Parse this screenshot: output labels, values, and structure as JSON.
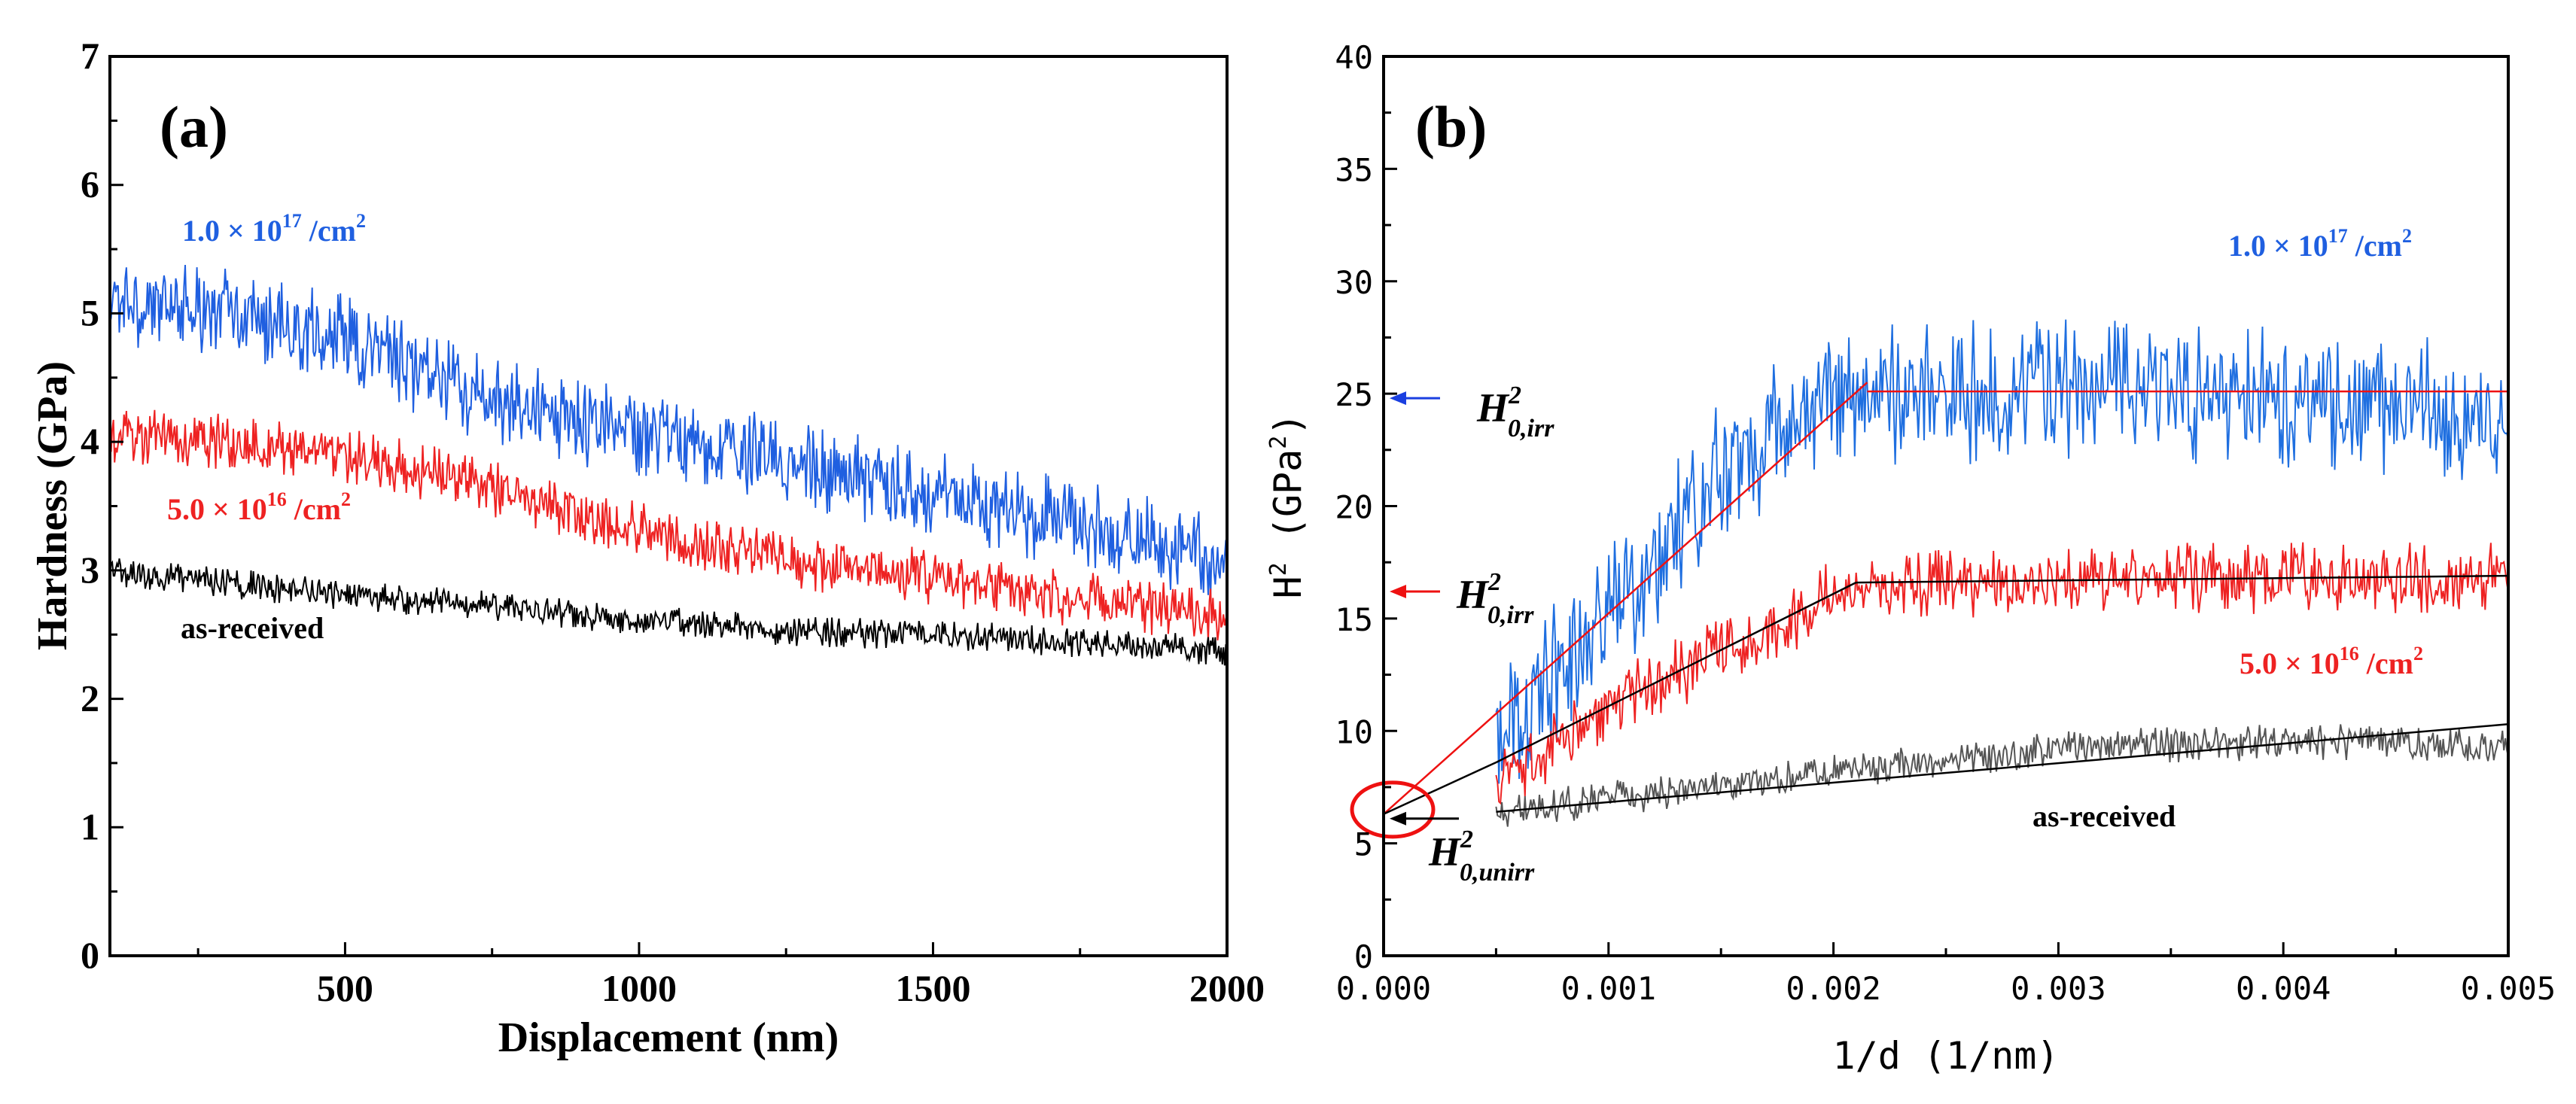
{
  "chart_data": [
    {
      "panel": "a",
      "type": "line",
      "panel_label": "(a)",
      "xlabel": "Displacement (nm)",
      "ylabel": "Hardness (GPa)",
      "xlim": [
        100,
        2000
      ],
      "ylim": [
        0,
        7
      ],
      "xticks": [
        500,
        1000,
        1500,
        2000
      ],
      "yticks": [
        0,
        1,
        2,
        3,
        4,
        5,
        6,
        7
      ],
      "series": [
        {
          "name": "1.0 × 10¹⁷ /cm²",
          "color": "#1f5fe0",
          "label_base": "1.0 × 10",
          "label_exp": "17",
          "label_unit": " /cm",
          "label_unit_exp": "2",
          "trend": [
            [
              100,
              5.1
            ],
            [
              300,
              5.0
            ],
            [
              500,
              4.8
            ],
            [
              700,
              4.4
            ],
            [
              900,
              4.15
            ],
            [
              1100,
              4.0
            ],
            [
              1300,
              3.8
            ],
            [
              1500,
              3.6
            ],
            [
              1700,
              3.4
            ],
            [
              1900,
              3.2
            ],
            [
              2000,
              3.1
            ]
          ],
          "noise": 0.35
        },
        {
          "name": "5.0 × 10¹⁶ /cm²",
          "color": "#ee2222",
          "label_base": "5.0 × 10",
          "label_exp": "16",
          "label_unit": " /cm",
          "label_unit_exp": "2",
          "trend": [
            [
              100,
              4.05
            ],
            [
              300,
              4.0
            ],
            [
              500,
              3.9
            ],
            [
              700,
              3.7
            ],
            [
              900,
              3.45
            ],
            [
              1100,
              3.2
            ],
            [
              1300,
              3.05
            ],
            [
              1500,
              2.95
            ],
            [
              1700,
              2.8
            ],
            [
              1900,
              2.7
            ],
            [
              2000,
              2.65
            ]
          ],
          "noise": 0.22
        },
        {
          "name": "as-received",
          "color": "#000000",
          "label_base": "as-received",
          "label_exp": "",
          "label_unit": "",
          "label_unit_exp": "",
          "trend": [
            [
              100,
              3.0
            ],
            [
              300,
              2.9
            ],
            [
              500,
              2.8
            ],
            [
              700,
              2.75
            ],
            [
              900,
              2.65
            ],
            [
              1100,
              2.58
            ],
            [
              1300,
              2.52
            ],
            [
              1500,
              2.5
            ],
            [
              1700,
              2.45
            ],
            [
              1900,
              2.4
            ],
            [
              2000,
              2.35
            ]
          ],
          "noise": 0.12
        }
      ]
    },
    {
      "panel": "b",
      "type": "line",
      "panel_label": "(b)",
      "xlabel": "1/d (1/nm)",
      "ylabel": "H² (GPa²)",
      "ylabel_base": "H",
      "ylabel_exp": "2",
      "ylabel_unit_open": " (GPa",
      "ylabel_unit_exp": "2",
      "ylabel_unit_close": ")",
      "xlim": [
        0,
        0.005
      ],
      "ylim": [
        0,
        40
      ],
      "xticks": [
        0.0,
        0.001,
        0.002,
        0.003,
        0.004,
        0.005
      ],
      "xtick_labels": [
        "0.000",
        "0.001",
        "0.002",
        "0.003",
        "0.004",
        "0.005"
      ],
      "yticks": [
        0,
        5,
        10,
        15,
        20,
        25,
        30,
        35,
        40
      ],
      "series": [
        {
          "name": "1.0 × 10¹⁷ /cm²",
          "color": "#1f6fe0",
          "label_base": "1.0 × 10",
          "label_exp": "17",
          "label_unit": " /cm",
          "label_unit_exp": "2",
          "trend": [
            [
              0.0005,
              10.0
            ],
            [
              0.001,
              15.0
            ],
            [
              0.0015,
              21.5
            ],
            [
              0.002,
              25.0
            ],
            [
              0.0025,
              25.0
            ],
            [
              0.003,
              25.3
            ],
            [
              0.0035,
              25.0
            ],
            [
              0.004,
              24.8
            ],
            [
              0.0045,
              24.5
            ],
            [
              0.005,
              24.0
            ]
          ],
          "noise": 3.2
        },
        {
          "name": "5.0 × 10¹⁶ /cm²",
          "color": "#ee2222",
          "label_base": "5.0 × 10",
          "label_exp": "16",
          "label_unit": " /cm",
          "label_unit_exp": "2",
          "trend": [
            [
              0.0005,
              7.5
            ],
            [
              0.001,
              11.0
            ],
            [
              0.0015,
              13.5
            ],
            [
              0.002,
              16.0
            ],
            [
              0.0025,
              16.5
            ],
            [
              0.003,
              16.5
            ],
            [
              0.0035,
              16.8
            ],
            [
              0.004,
              16.8
            ],
            [
              0.0045,
              16.8
            ],
            [
              0.005,
              16.8
            ]
          ],
          "noise": 1.6
        },
        {
          "name": "as-received",
          "color": "#555555",
          "label_base": "as-received",
          "label_exp": "",
          "label_unit": "",
          "label_unit_exp": "",
          "trend": [
            [
              0.0005,
              6.3
            ],
            [
              0.001,
              7.0
            ],
            [
              0.0015,
              7.5
            ],
            [
              0.002,
              8.2
            ],
            [
              0.0025,
              8.7
            ],
            [
              0.003,
              9.2
            ],
            [
              0.0035,
              9.4
            ],
            [
              0.004,
              9.5
            ],
            [
              0.0045,
              9.5
            ],
            [
              0.005,
              9.2
            ]
          ],
          "noise": 0.8
        }
      ],
      "fit_lines": [
        {
          "color": "#ee1111",
          "points": [
            [
              0.0,
              6.3
            ],
            [
              0.00215,
              25.5
            ]
          ]
        },
        {
          "color": "#ee1111",
          "points": [
            [
              0.00215,
              25.1
            ],
            [
              0.005,
              25.1
            ]
          ]
        },
        {
          "color": "#000000",
          "points": [
            [
              0.0005,
              8.6
            ],
            [
              0.0021,
              16.6
            ]
          ]
        },
        {
          "color": "#000000",
          "points": [
            [
              0.0021,
              16.6
            ],
            [
              0.005,
              16.9
            ]
          ]
        },
        {
          "color": "#000000",
          "points": [
            [
              0.0005,
              6.4
            ],
            [
              0.005,
              10.3
            ]
          ]
        },
        {
          "color": "#000000",
          "points": [
            [
              0.0,
              6.3
            ],
            [
              0.0005,
              8.6
            ]
          ]
        }
      ],
      "annotations": [
        {
          "name": "h0-irr-high",
          "text_base": "H",
          "text_sup": "2",
          "text_sub": "0,irr",
          "arrow_color": "#1a3fe0",
          "y": 24.8
        },
        {
          "name": "h0-irr-low",
          "text_base": "H",
          "text_sup": "2",
          "text_sub": "0,irr",
          "arrow_color": "#ee1111",
          "y": 16.2
        },
        {
          "name": "h0-unirr",
          "text_base": "H",
          "text_sup": "2",
          "text_sub": "0,unirr",
          "arrow_color": "#000000",
          "y": 6.1
        }
      ],
      "circle": {
        "x": 0.0,
        "y": 6.5,
        "color": "#ee1111"
      }
    }
  ]
}
